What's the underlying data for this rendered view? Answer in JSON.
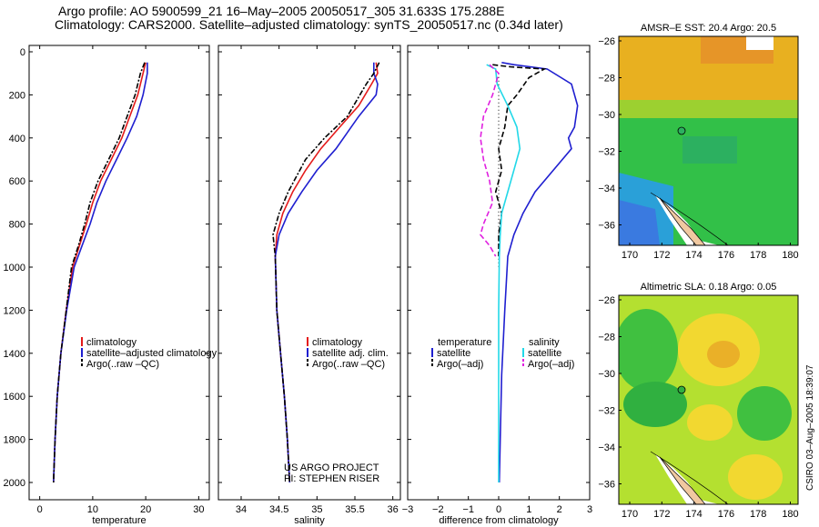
{
  "title_line1": "Argo profile: AO 5900599_21 16–May–2005 20050517_305 31.633S 175.288E",
  "title_line2": "Climatology: CARS2000. Satellite–adjusted climatology: synTS_20050517.nc (0.34d later)",
  "side_label": "CSIRO 03–Aug–2005 18:39:07",
  "project_line1": "US ARGO PROJECT",
  "project_line2": "PI: STEPHEN RISER",
  "colors": {
    "climatology": "#e41a1a",
    "satellite": "#1f1fd0",
    "argo": "#000000",
    "satellite_diff": "#22d8e8",
    "argo_diff": "#e020e0"
  },
  "chart_data": [
    {
      "type": "line",
      "xlabel": "temperature",
      "xlim": [
        -2,
        32
      ],
      "ylim": [
        2050,
        0
      ],
      "xticks": [
        "0",
        "10",
        "20",
        "30"
      ],
      "xtick_values": [
        0,
        10,
        20,
        30
      ],
      "yticks": [
        "0",
        "200",
        "400",
        "600",
        "800",
        "1000",
        "1200",
        "1400",
        "1600",
        "1800",
        "2000"
      ],
      "ytick_values": [
        0,
        200,
        400,
        600,
        800,
        1000,
        1200,
        1400,
        1600,
        1800,
        2000
      ],
      "legend": [
        "climatology",
        "satellite–adjusted climatology",
        "Argo(..raw –QC)"
      ],
      "series": [
        {
          "name": "climatology",
          "style": "solid",
          "color": "red",
          "x": [
            20.0,
            19.5,
            18.5,
            17.0,
            15.5,
            13.5,
            11.5,
            10.0,
            8.8,
            7.5,
            6.2,
            5.0,
            4.0,
            3.3,
            2.9,
            2.6
          ],
          "y": [
            50,
            100,
            200,
            300,
            400,
            500,
            600,
            700,
            800,
            900,
            1000,
            1200,
            1400,
            1600,
            1800,
            2000
          ]
        },
        {
          "name": "satellite–adjusted climatology",
          "style": "solid",
          "color": "blue",
          "x": [
            20.3,
            20.3,
            19.5,
            18.3,
            16.5,
            14.5,
            12.5,
            10.8,
            9.5,
            8.0,
            6.5,
            5.1,
            4.0,
            3.3,
            2.9,
            2.6
          ],
          "y": [
            50,
            100,
            200,
            300,
            400,
            500,
            600,
            700,
            800,
            900,
            1000,
            1200,
            1400,
            1600,
            1800,
            2000
          ]
        },
        {
          "name": "Argo(..raw –QC)",
          "style": "dashdot",
          "color": "black",
          "x": [
            19.8,
            19.0,
            18.0,
            16.5,
            15.0,
            13.0,
            11.0,
            9.5,
            8.5,
            7.3,
            6.0,
            5.0,
            4.0,
            3.3,
            2.9,
            2.6
          ],
          "y": [
            50,
            100,
            200,
            300,
            400,
            500,
            600,
            700,
            800,
            900,
            1000,
            1200,
            1400,
            1600,
            1800,
            2000
          ]
        }
      ]
    },
    {
      "type": "line",
      "xlabel": "salinity",
      "xlim": [
        33.7,
        36.1
      ],
      "ylim": [
        2050,
        0
      ],
      "xticks": [
        "34",
        "34.5",
        "35",
        "35.5",
        "36"
      ],
      "xtick_values": [
        34,
        34.5,
        35,
        35.5,
        36
      ],
      "legend": [
        "climatology",
        "satellite adj. clim.",
        "Argo(..raw –QC)"
      ],
      "series": [
        {
          "name": "climatology",
          "style": "solid",
          "color": "red",
          "x": [
            35.78,
            35.8,
            35.72,
            35.55,
            35.3,
            35.05,
            34.85,
            34.68,
            34.55,
            34.47,
            34.45,
            34.47,
            34.52,
            34.57,
            34.61,
            34.64
          ],
          "y": [
            50,
            100,
            150,
            250,
            350,
            450,
            550,
            650,
            750,
            850,
            950,
            1200,
            1400,
            1600,
            1800,
            2000
          ]
        },
        {
          "name": "satellite adj. clim.",
          "style": "solid",
          "color": "blue",
          "x": [
            35.75,
            35.75,
            35.8,
            35.78,
            35.55,
            35.25,
            35.0,
            34.8,
            34.62,
            34.5,
            34.45,
            34.47,
            34.52,
            34.57,
            34.61,
            34.64
          ],
          "y": [
            50,
            100,
            150,
            200,
            300,
            450,
            550,
            650,
            750,
            850,
            950,
            1200,
            1400,
            1600,
            1800,
            2000
          ]
        },
        {
          "name": "Argo(..raw –QC)",
          "style": "dashdot",
          "color": "black",
          "x": [
            35.82,
            35.75,
            35.65,
            35.4,
            35.1,
            34.85,
            34.62,
            34.5,
            34.42,
            34.45,
            34.47,
            34.52,
            34.57,
            34.61,
            34.64
          ],
          "y": [
            50,
            100,
            150,
            300,
            400,
            500,
            650,
            750,
            850,
            950,
            1200,
            1400,
            1600,
            1800,
            2000
          ]
        }
      ]
    },
    {
      "type": "line",
      "xlabel": "difference from climatology",
      "xlim": [
        -3,
        3
      ],
      "ylim": [
        2050,
        0
      ],
      "xticks": [
        "−3",
        "−2",
        "−1",
        "0",
        "1",
        "2",
        "3"
      ],
      "xtick_values": [
        -3,
        -2,
        -1,
        0,
        1,
        2,
        3
      ],
      "legend_left_heading": "temperature",
      "legend_right_heading": "salinity",
      "legend": [
        "satellite",
        "Argo(–adj)",
        "satellite",
        "Argo(–adj)"
      ],
      "series": [
        {
          "name": "temperature satellite",
          "style": "solid",
          "color": "blue",
          "x": [
            0.1,
            0.5,
            1.6,
            2.4,
            2.6,
            2.5,
            2.3,
            2.4,
            1.8,
            1.2,
            0.8,
            0.5,
            0.3,
            0.2,
            0.1,
            0.05,
            0.02
          ],
          "y": [
            50,
            60,
            80,
            150,
            250,
            350,
            400,
            450,
            550,
            650,
            750,
            850,
            950,
            1200,
            1500,
            1800,
            2000
          ]
        },
        {
          "name": "temperature Argo(–adj)",
          "style": "dashed",
          "color": "black",
          "x": [
            -0.2,
            0.4,
            1.5,
            1.0,
            0.6,
            0.3,
            0.2,
            0.0,
            0.1,
            -0.1,
            0.1,
            0.0,
            0.0
          ],
          "y": [
            60,
            70,
            80,
            120,
            200,
            250,
            350,
            450,
            550,
            650,
            750,
            850,
            950
          ]
        },
        {
          "name": "salinity satellite",
          "style": "solid",
          "color": "cyan",
          "x": [
            -0.4,
            -0.1,
            -0.05,
            0.3,
            0.6,
            0.7,
            0.5,
            0.3,
            0.1,
            0.05,
            0.02,
            0.0,
            0.0,
            0.0
          ],
          "y": [
            60,
            80,
            150,
            250,
            350,
            450,
            550,
            650,
            750,
            850,
            950,
            1200,
            1600,
            2000
          ]
        },
        {
          "name": "salinity Argo(–adj)",
          "style": "dashed",
          "color": "magenta",
          "x": [
            -0.3,
            0.0,
            -0.2,
            -0.5,
            -0.6,
            -0.5,
            -0.3,
            -0.2,
            -0.5,
            -0.6,
            -0.3,
            -0.1
          ],
          "y": [
            60,
            100,
            200,
            300,
            400,
            500,
            600,
            700,
            800,
            850,
            900,
            950
          ]
        }
      ]
    }
  ],
  "maps": [
    {
      "title": "AMSR–E SST: 20.4 Argo: 20.5",
      "xticks": [
        "170",
        "172",
        "174",
        "176",
        "178",
        "180"
      ],
      "yticks": [
        "−26",
        "−28",
        "−30",
        "−32",
        "−34",
        "−36"
      ]
    },
    {
      "title": "Altimetric SLA: 0.18 Argo: 0.05",
      "xticks": [
        "170",
        "172",
        "174",
        "176",
        "178",
        "180"
      ],
      "yticks": [
        "−26",
        "−28",
        "−30",
        "−32",
        "−34",
        "−36"
      ]
    }
  ]
}
